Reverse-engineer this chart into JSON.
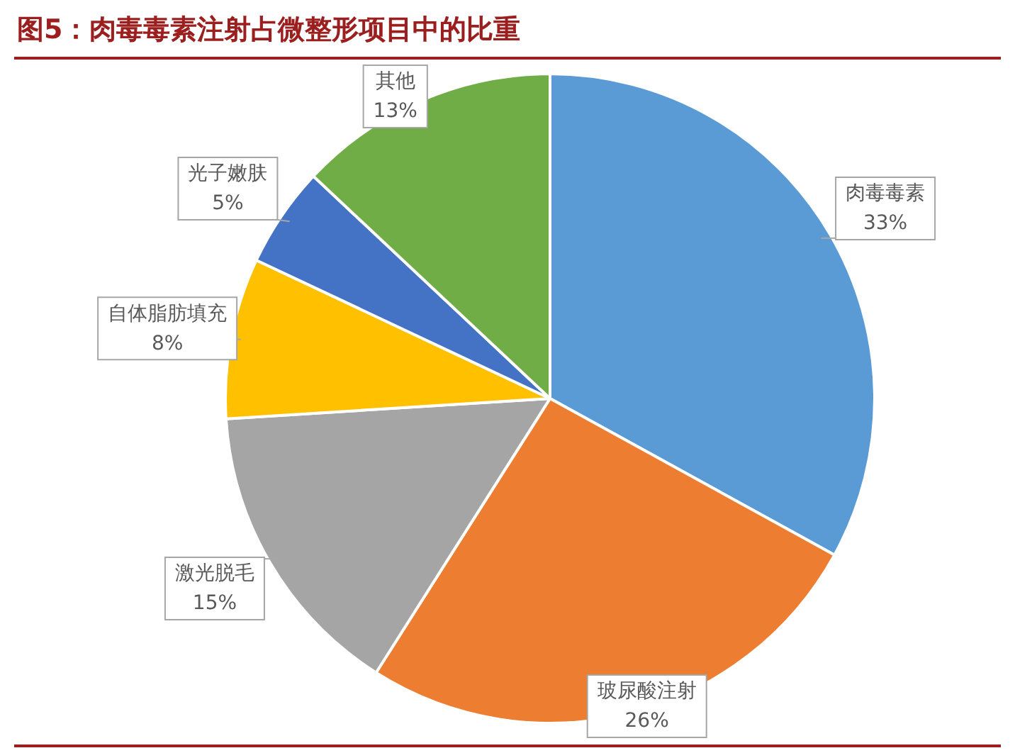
{
  "chart_data": {
    "type": "pie",
    "title": "图5：肉毒毒素注射占微整形项目中的比重",
    "categories": [
      "肉毒毒素",
      "玻尿酸注射",
      "激光脱毛",
      "自体脂肪填充",
      "光子嫩肤",
      "其他"
    ],
    "values": [
      33,
      26,
      15,
      8,
      5,
      13
    ],
    "colors": [
      "#5b9bd5",
      "#ed7d31",
      "#a5a5a5",
      "#ffc000",
      "#4472c4",
      "#70ad47"
    ],
    "value_labels": [
      "33%",
      "26%",
      "15%",
      "8%",
      "5%",
      "13%"
    ],
    "legend": false
  }
}
